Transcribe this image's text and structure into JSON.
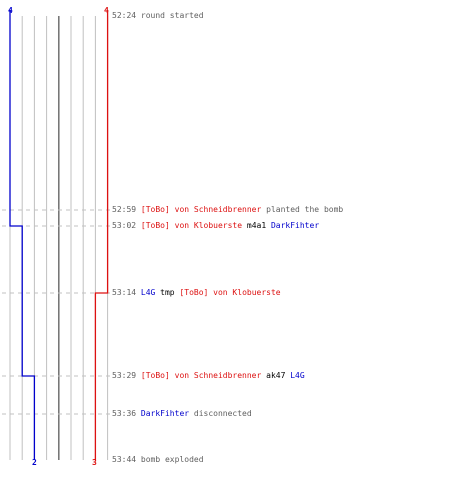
{
  "colors": {
    "team_a": "#0000cc",
    "team_b": "#dd1111",
    "grid": "#c0c0c0",
    "center_line": "#707070",
    "dash": "#c0c0c0",
    "time": "#606060",
    "action": "#606060",
    "weapon": "#000000"
  },
  "team_counts": {
    "a_start": "4",
    "b_start": "4",
    "a_end": "2",
    "b_end": "3"
  },
  "events": [
    {
      "time": "52:24",
      "parts": [
        {
          "t": "round started",
          "c": "action"
        }
      ]
    },
    {
      "time": "52:59",
      "parts": [
        {
          "t": "[ToBo] von Schneidbrenner",
          "c": "team_b"
        },
        {
          "t": " planted the bomb",
          "c": "action"
        }
      ]
    },
    {
      "time": "53:02",
      "parts": [
        {
          "t": "[ToBo] von Klobuerste",
          "c": "team_b"
        },
        {
          "t": " m4a1 ",
          "c": "weapon"
        },
        {
          "t": "DarkFihter",
          "c": "team_a"
        }
      ]
    },
    {
      "time": "53:14",
      "parts": [
        {
          "t": "L4G",
          "c": "team_a"
        },
        {
          "t": " tmp ",
          "c": "weapon"
        },
        {
          "t": "[ToBo] von Klobuerste",
          "c": "team_b"
        }
      ]
    },
    {
      "time": "53:29",
      "parts": [
        {
          "t": "[ToBo] von Schneidbrenner",
          "c": "team_b"
        },
        {
          "t": " ak47 ",
          "c": "weapon"
        },
        {
          "t": "L4G",
          "c": "team_a"
        }
      ]
    },
    {
      "time": "53:36",
      "parts": [
        {
          "t": "DarkFihter",
          "c": "team_a"
        },
        {
          "t": " disconnected",
          "c": "action"
        }
      ]
    },
    {
      "time": "53:44",
      "parts": [
        {
          "t": "bomb exploded",
          "c": "action"
        }
      ]
    }
  ],
  "team_a_counts": [
    4,
    4,
    3,
    3,
    2,
    2,
    2
  ],
  "team_b_counts": [
    4,
    4,
    4,
    3,
    3,
    3,
    3
  ]
}
